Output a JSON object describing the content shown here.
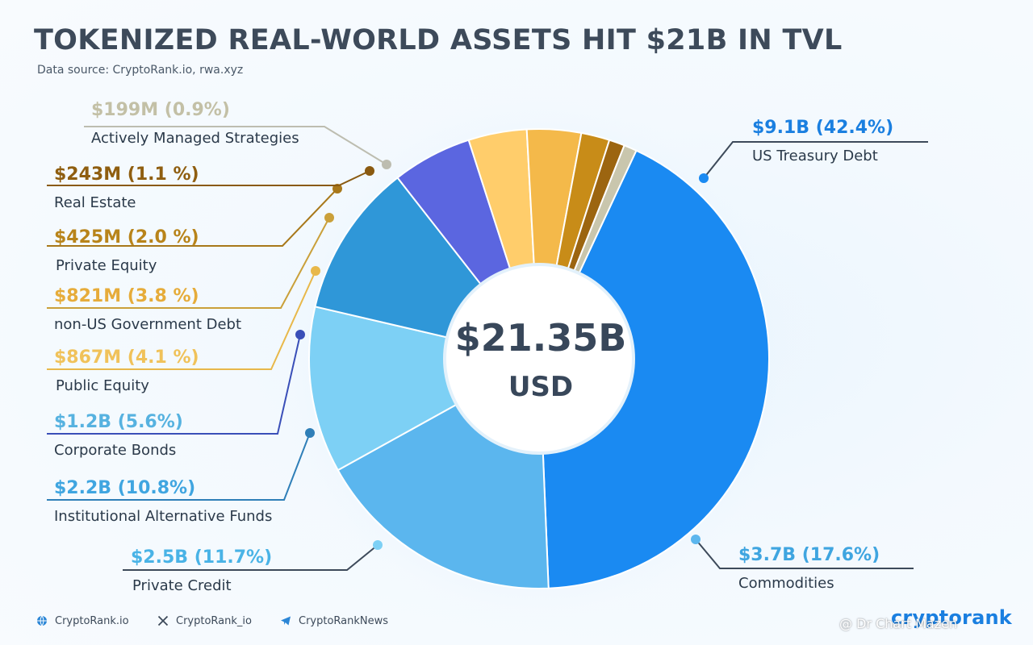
{
  "title": "TOKENIZED REAL-WORLD ASSETS HIT $21B IN TVL",
  "subtitle": "Data source: CryptoRank.io, rwa.xyz",
  "center": {
    "value": "$21.35B",
    "unit": "USD"
  },
  "chart_data": {
    "type": "pie",
    "style": "donut",
    "total_label": "$21.35B",
    "total_unit": "USD",
    "slices": [
      {
        "label": "US Treasury Debt",
        "amount": "$9.1B",
        "percent": 42.4,
        "percent_text": "(42.4%)",
        "color": "#1a8af2"
      },
      {
        "label": "Commodities",
        "amount": "$3.7B",
        "percent": 17.6,
        "percent_text": "(17.6%)",
        "color": "#5bb6ee"
      },
      {
        "label": "Private Credit",
        "amount": "$2.5B",
        "percent": 11.7,
        "percent_text": "(11.7%)",
        "color": "#7dd0f5"
      },
      {
        "label": "Institutional Alternative Funds",
        "amount": "$2.2B",
        "percent": 10.8,
        "percent_text": "(10.8%)",
        "color": "#2f97d8"
      },
      {
        "label": "Corporate Bonds",
        "amount": "$1.2B",
        "percent": 5.6,
        "percent_text": "(5.6%)",
        "color": "#5b66e0"
      },
      {
        "label": "Public Equity",
        "amount": "$867M",
        "percent": 4.1,
        "percent_text": "(4.1 %)",
        "color": "#ffcd6b"
      },
      {
        "label": "non-US Government Debt",
        "amount": "$821M",
        "percent": 3.8,
        "percent_text": "(3.8 %)",
        "color": "#f4b94a"
      },
      {
        "label": "Private Equity",
        "amount": "$425M",
        "percent": 2.0,
        "percent_text": "(2.0 %)",
        "color": "#c88c18"
      },
      {
        "label": "Real Estate",
        "amount": "$243M",
        "percent": 1.1,
        "percent_text": "(1.1 %)",
        "color": "#9c6510"
      },
      {
        "label": "Actively Managed Strategies",
        "amount": "$199M",
        "percent": 0.9,
        "percent_text": "(0.9%)",
        "color": "#c9c6ad"
      }
    ]
  },
  "footer": {
    "website": "CryptoRank.io",
    "x_handle": "CryptoRank_io",
    "telegram": "CryptoRankNews",
    "brand": "cryptorank",
    "watermark": "@ Dr Chart Mazen"
  }
}
